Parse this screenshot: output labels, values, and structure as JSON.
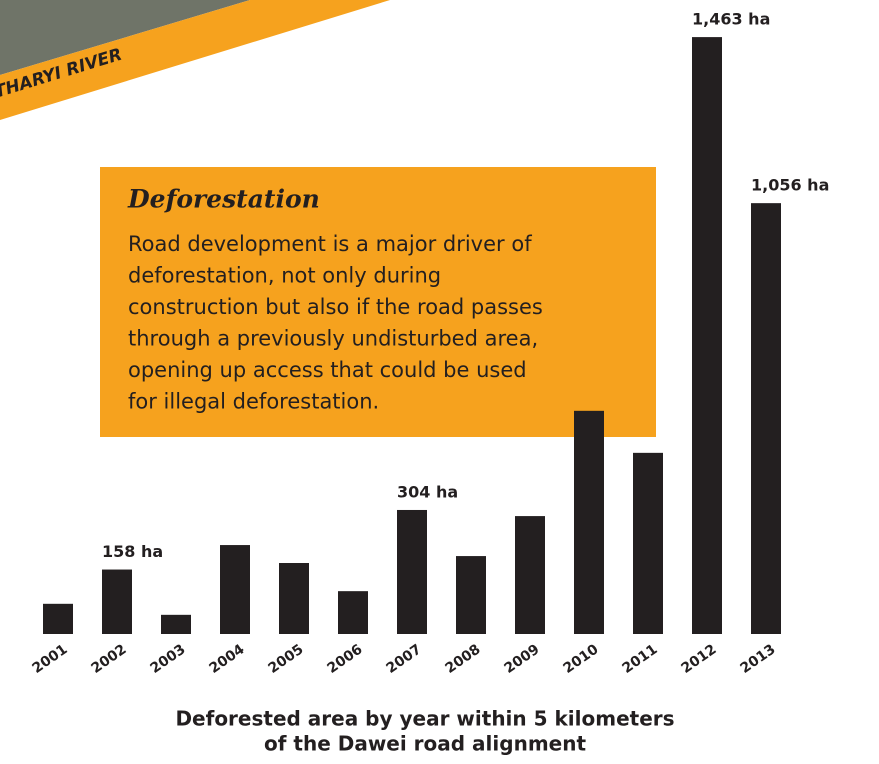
{
  "chart_data": {
    "type": "bar",
    "river_label": "THARYI RIVER",
    "annotation": {
      "title": "Deforestation",
      "lines": [
        "Road development is a major driver of",
        "deforestation, not only during",
        "construction but also if the road passes",
        "through a previously undisturbed area,",
        "opening up access that could be used",
        "for illegal deforestation."
      ]
    },
    "categories": [
      "2001",
      "2002",
      "2003",
      "2004",
      "2005",
      "2006",
      "2007",
      "2008",
      "2009",
      "2010",
      "2011",
      "2012",
      "2013"
    ],
    "values": [
      74,
      158,
      47,
      218,
      174,
      105,
      304,
      191,
      289,
      547,
      444,
      1463,
      1056
    ],
    "value_labels": [
      null,
      "158 ha",
      null,
      null,
      null,
      null,
      "304 ha",
      null,
      null,
      null,
      null,
      "1,463 ha",
      "1,056 ha"
    ],
    "color": "#231f20",
    "ylim": [
      0,
      1500
    ],
    "caption": [
      "Deforested area by year within 5 kilometers",
      "of the Dawei road alignment"
    ]
  }
}
